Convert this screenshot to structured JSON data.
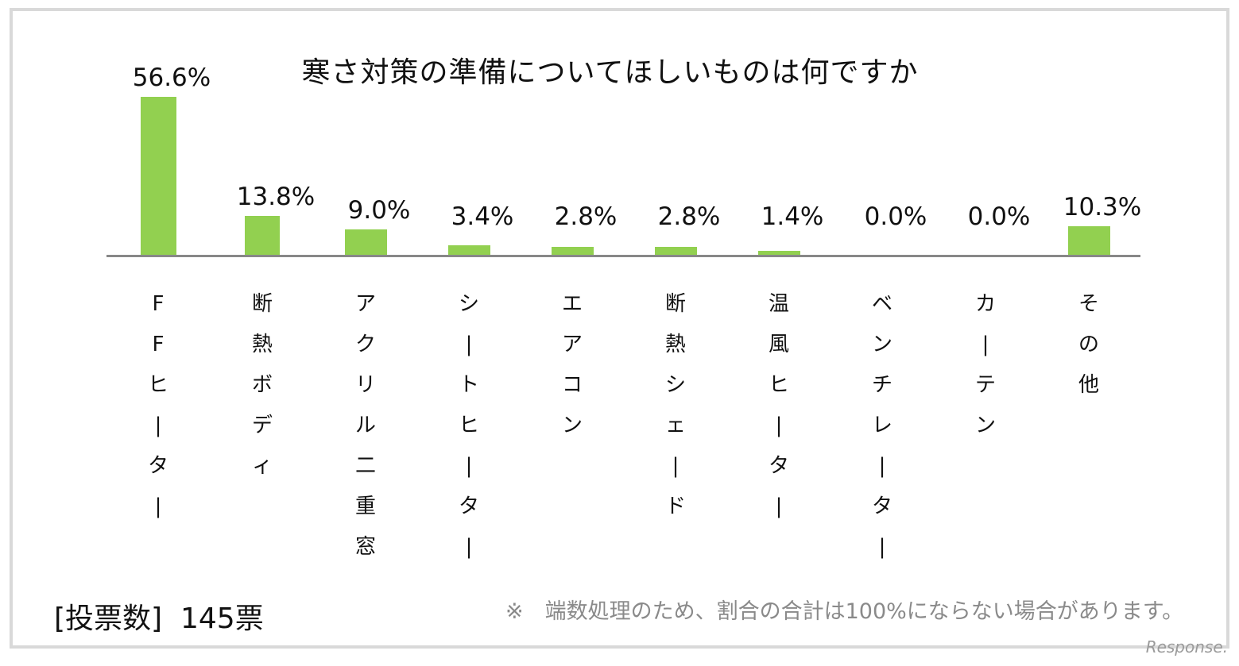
{
  "chart_data": {
    "type": "bar",
    "title": "寒さ対策の準備についてほしいものは何ですか",
    "categories": [
      "FFヒーター",
      "断熱ボディ",
      "アクリル二重窓",
      "シートヒーター",
      "エアコン",
      "断熱シェード",
      "温風ヒーター",
      "ベンチレーター",
      "カーテン",
      "その他"
    ],
    "values": [
      56.6,
      13.8,
      9.0,
      3.4,
      2.8,
      2.8,
      1.4,
      0.0,
      0.0,
      10.3
    ],
    "value_labels": [
      "56.6%",
      "13.8%",
      "9.0%",
      "3.4%",
      "2.8%",
      "2.8%",
      "1.4%",
      "0.0%",
      "0.0%",
      "10.3%"
    ],
    "unit": "%",
    "xlabel": "",
    "ylabel": "",
    "grid": false,
    "legend": null,
    "bar_color": "#92d050",
    "axis_color": "#888888"
  },
  "footer": {
    "votes_label": "[投票数]",
    "votes_value": "145票",
    "note": "※　端数処理のため、割合の合計は100%にならない場合があります。",
    "watermark": "Response."
  }
}
